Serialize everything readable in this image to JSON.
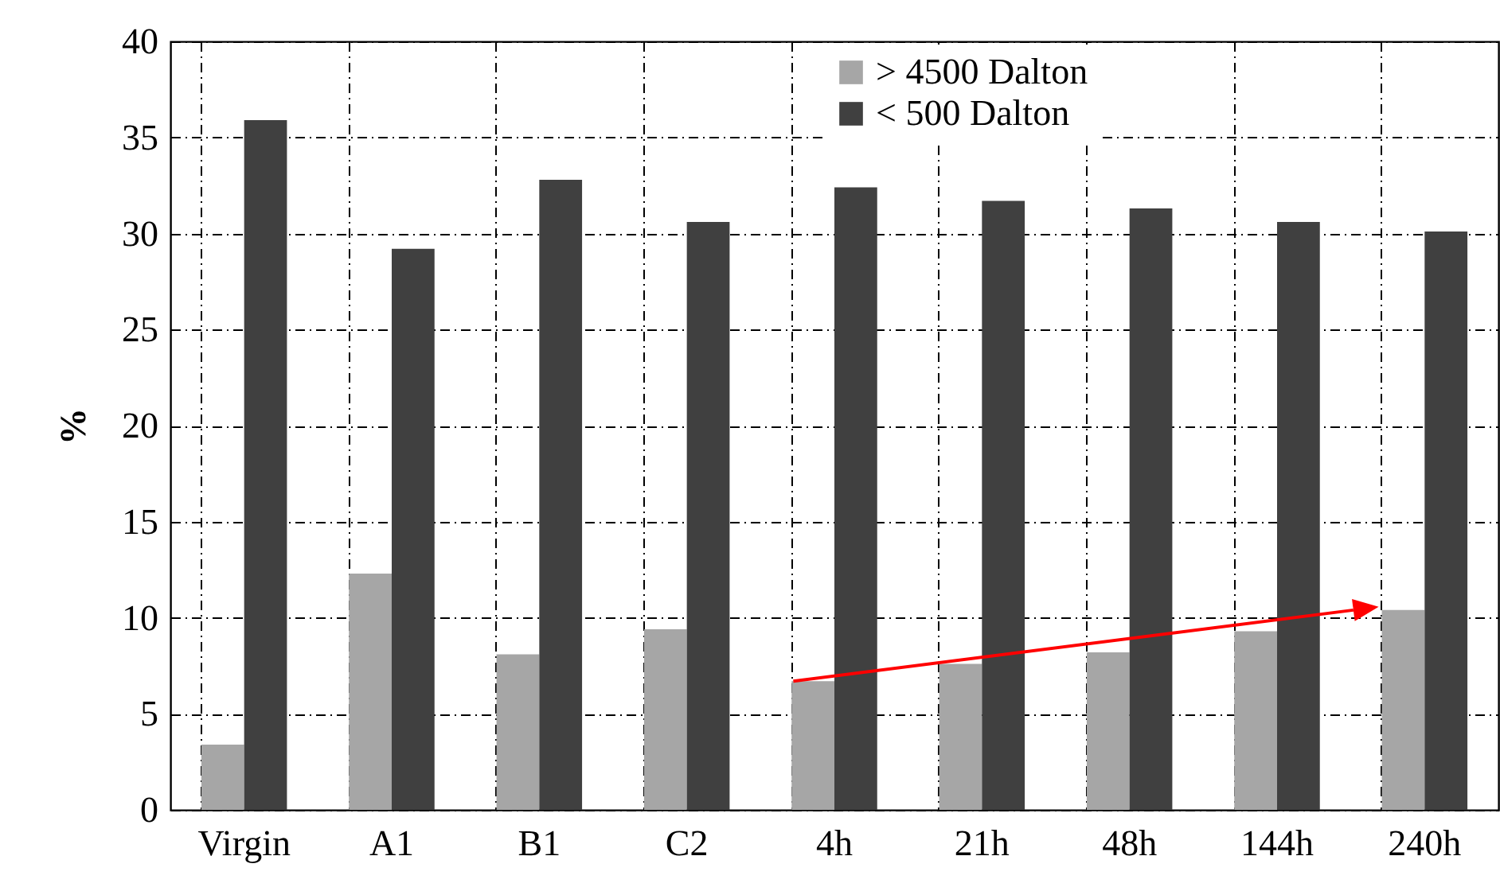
{
  "chart_data": {
    "type": "bar",
    "ylabel": "%",
    "categories": [
      "Virgin",
      "A1",
      "B1",
      "C2",
      "4h",
      "21h",
      "48h",
      "144h",
      "240h"
    ],
    "series": [
      {
        "name": "> 4500 Dalton",
        "color": "#a6a6a6",
        "values": [
          3.4,
          12.3,
          8.1,
          9.4,
          6.7,
          7.6,
          8.2,
          9.3,
          10.4
        ]
      },
      {
        "name": "< 500 Dalton",
        "color": "#404040",
        "values": [
          35.9,
          29.2,
          32.8,
          30.6,
          32.4,
          31.7,
          31.3,
          30.6,
          30.1
        ]
      }
    ],
    "ylim": [
      0,
      40
    ],
    "yticks": [
      0,
      5,
      10,
      15,
      20,
      25,
      30,
      35,
      40
    ],
    "grid": true,
    "legend": "top right"
  }
}
